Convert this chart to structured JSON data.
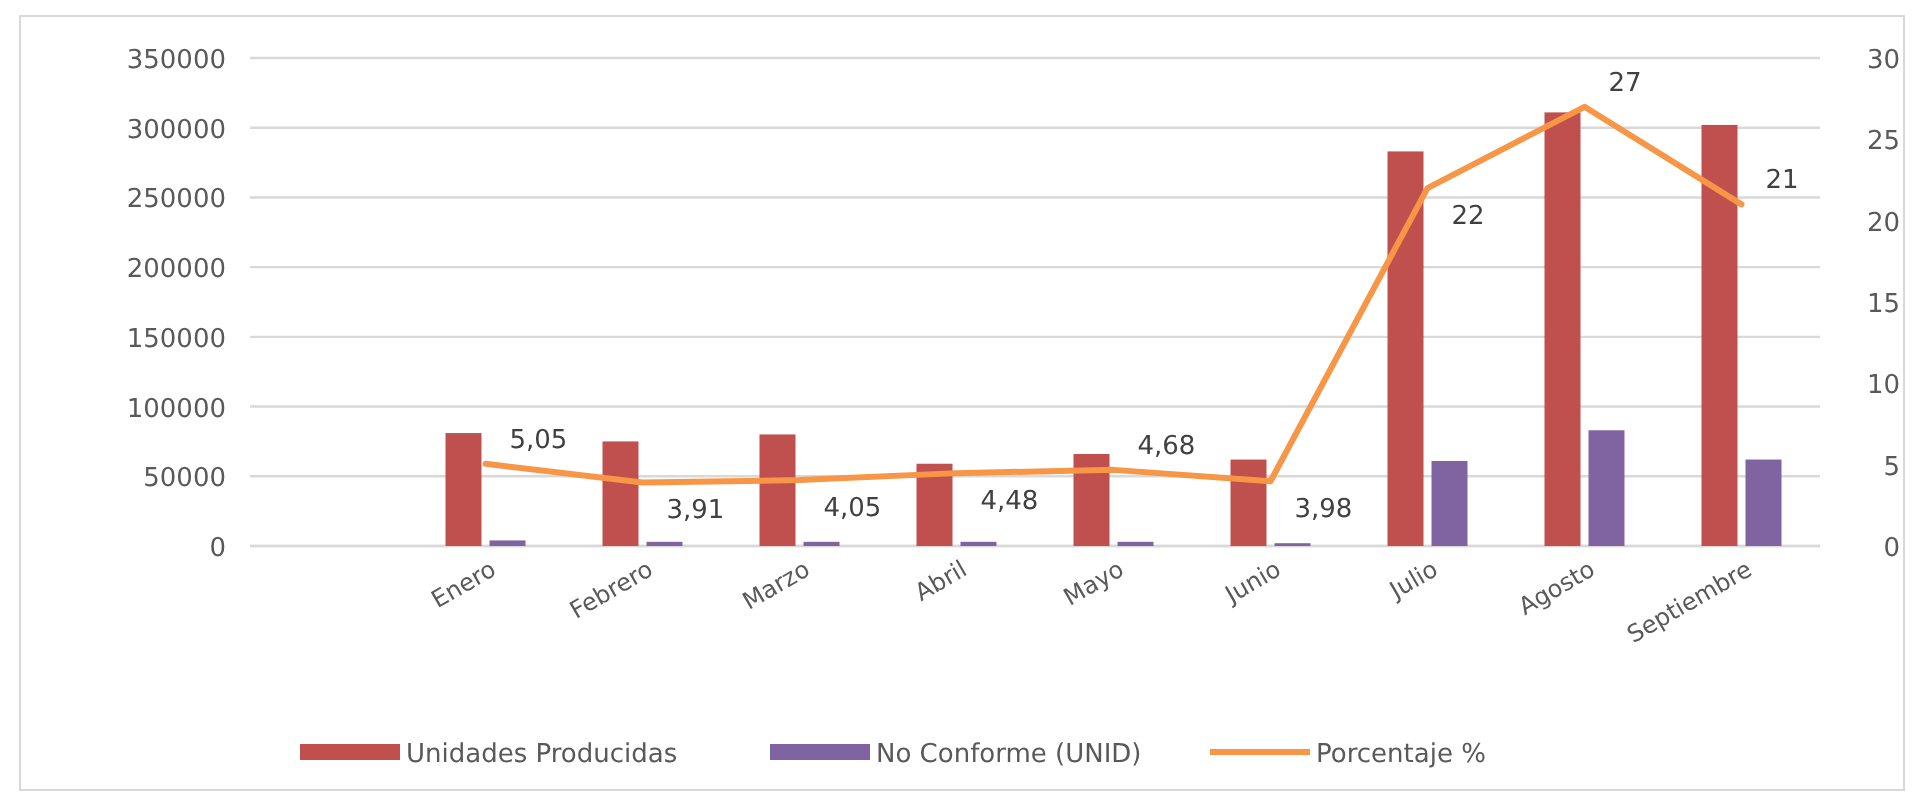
{
  "chart_data": {
    "type": "bar",
    "categories": [
      null,
      "Enero",
      "Febrero",
      "Marzo",
      "Abril",
      "Mayo",
      "Junio",
      "Julio",
      "Agosto",
      "Septiembre"
    ],
    "series": [
      {
        "name": "Unidades Producidas",
        "color": "#c0504d",
        "values": [
          null,
          81000,
          75000,
          80000,
          59000,
          66000,
          62000,
          283000,
          311000,
          302000
        ]
      },
      {
        "name": "No Conforme (UNID)",
        "color": "#8064a2",
        "values": [
          null,
          4000,
          3000,
          3000,
          3000,
          3000,
          2000,
          61000,
          83000,
          62000
        ]
      },
      {
        "name": "Porcentaje %",
        "type": "line",
        "axis": "y2",
        "color": "#f79646",
        "values": [
          null,
          5.05,
          3.91,
          4.05,
          4.48,
          4.68,
          3.98,
          22,
          27,
          21
        ],
        "value_labels": [
          null,
          "5,05",
          "3,91",
          "4,05",
          "4,48",
          "4,68",
          "3,98",
          "22",
          "27",
          "21"
        ]
      }
    ],
    "ylim": [
      0,
      350000
    ],
    "yticks": [
      0,
      50000,
      100000,
      150000,
      200000,
      250000,
      300000,
      350000
    ],
    "y2lim": [
      0,
      30
    ],
    "y2ticks": [
      0,
      5,
      10,
      15,
      20,
      25,
      30
    ],
    "grid": "y",
    "legend": "bottom",
    "marker": "none",
    "line_style": "solid"
  }
}
